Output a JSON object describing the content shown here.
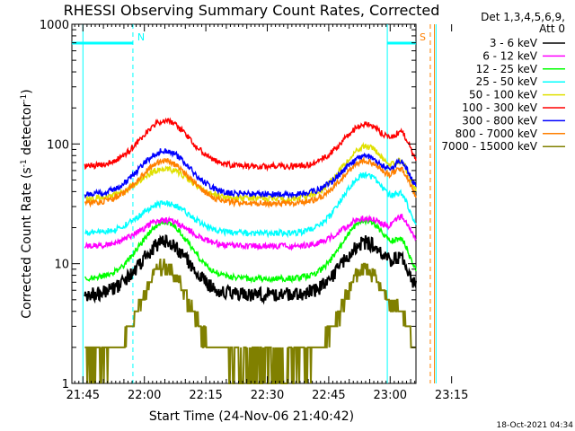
{
  "chart_data": {
    "type": "line",
    "title": "RHESSI Observing Summary Count Rates, Corrected",
    "xlabel": "Start Time (24-Nov-06 21:40:42)",
    "ylabel": "Corrected Count Rate (s",
    "ylabel_sup1": "-1",
    "ylabel_mid": " detector",
    "ylabel_sup2": "-1",
    "ylabel_end": ")",
    "y_scale": "log",
    "ylim": [
      1,
      1000
    ],
    "y_ticks": [
      {
        "value": 1,
        "label": "1"
      },
      {
        "value": 10,
        "label": "10"
      },
      {
        "value": 100,
        "label": "100"
      },
      {
        "value": 1000,
        "label": "1000"
      }
    ],
    "x_range_minutes": [
      -2.7,
      81.3
    ],
    "x_ticks": [
      {
        "minute": 0,
        "label": "21:45"
      },
      {
        "minute": 15,
        "label": "22:00"
      },
      {
        "minute": 30,
        "label": "22:15"
      },
      {
        "minute": 45,
        "label": "22:30"
      },
      {
        "minute": 60,
        "label": "22:45"
      },
      {
        "minute": 75,
        "label": "23:00"
      },
      {
        "minute": 90,
        "label": "23:15"
      }
    ],
    "legend_header": [
      "Det 1,3,4,5,6,9,",
      "Att 0"
    ],
    "legend_position": "right",
    "night_markers": [
      {
        "minute": 0,
        "label": ""
      },
      {
        "minute": 74.3,
        "label": ""
      }
    ],
    "dashed_markers": [
      {
        "minute": 12.2,
        "label": "N",
        "color": "#00ffff"
      },
      {
        "minute": 84.8,
        "label": "S",
        "color": "#ff7f00"
      }
    ],
    "series": [
      {
        "name": "3 - 6 keV",
        "color": "#000000",
        "base": 5.5,
        "peak1": 15,
        "peak2": 15
      },
      {
        "name": "6 - 12 keV",
        "color": "#ff00ff",
        "base": 14,
        "peak1": 23,
        "peak2": 24
      },
      {
        "name": "12 - 25 keV",
        "color": "#00ff00",
        "base": 7.5,
        "peak1": 22,
        "peak2": 23
      },
      {
        "name": "25 - 50 keV",
        "color": "#00ffff",
        "base": 18,
        "peak1": 32,
        "peak2": 55
      },
      {
        "name": "50 - 100 keV",
        "color": "#e0e000",
        "base": 35,
        "peak1": 62,
        "peak2": 95
      },
      {
        "name": "100 - 300 keV",
        "color": "#ff0000",
        "base": 65,
        "peak1": 155,
        "peak2": 145
      },
      {
        "name": "300 - 800 keV",
        "color": "#0000ff",
        "base": 38,
        "peak1": 88,
        "peak2": 78
      },
      {
        "name": "800 - 7000 keV",
        "color": "#ff8000",
        "base": 32,
        "peak1": 72,
        "peak2": 72
      },
      {
        "name": "7000 - 15000 keV",
        "color": "#808000",
        "base": 1.5,
        "peak1": 9.5,
        "peak2": 9
      }
    ]
  },
  "footer_timestamp": "18-Oct-2021 04:34"
}
